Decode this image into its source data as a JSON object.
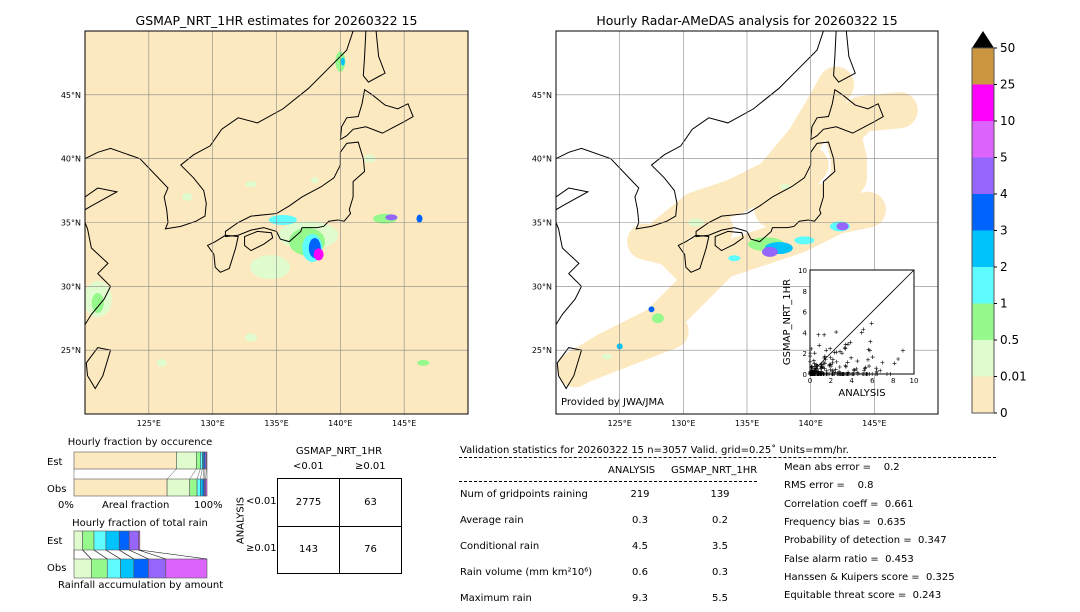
{
  "left_map": {
    "title": "GSMAP_NRT_1HR estimates for 20260322 15"
  },
  "right_map": {
    "title": "Hourly Radar-AMeDAS analysis for 20260322 15",
    "credit": "Provided by JWA/JMA"
  },
  "chart_data": [
    {
      "type": "map",
      "name": "left",
      "lon_ticks": [
        "125°E",
        "130°E",
        "135°E",
        "140°E",
        "145°E"
      ],
      "lat_ticks": [
        "45°N",
        "40°N",
        "35°N",
        "30°N",
        "25°N"
      ],
      "lon_range": [
        120,
        150
      ],
      "lat_range": [
        20,
        50
      ],
      "background": "#fde9c0"
    },
    {
      "type": "map",
      "name": "right",
      "lon_ticks": [
        "125°E",
        "130°E",
        "135°E",
        "140°E",
        "145°E"
      ],
      "lat_ticks": [
        "45°N",
        "40°N",
        "35°N",
        "30°N",
        "25°N"
      ],
      "lon_range": [
        120,
        150
      ],
      "lat_range": [
        20,
        50
      ]
    },
    {
      "type": "scatter",
      "xlabel": "ANALYSIS",
      "ylabel": "GSMAP_NRT_1HR",
      "xlim": [
        0,
        10
      ],
      "ylim": [
        0,
        10
      ],
      "ticks": [
        "0",
        "2",
        "4",
        "6",
        "8",
        "10"
      ],
      "marker": "+"
    },
    {
      "type": "colorbar",
      "labels": [
        "0",
        "0.01",
        "0.5",
        "1",
        "2",
        "3",
        "4",
        "5",
        "10",
        "25",
        "50"
      ],
      "colors": [
        "#fde9c0",
        "#e0fccf",
        "#96f98c",
        "#5efcfc",
        "#00c3fc",
        "#0064fc",
        "#9665fc",
        "#dc64fc",
        "#fc00fc",
        "#cc9640"
      ],
      "extend": "max"
    }
  ],
  "occurrence": {
    "title": "Hourly fraction by occurence",
    "rows": [
      "Est",
      "Obs"
    ],
    "xlabel": "Areal fraction",
    "x0": "0%",
    "x1": "100%",
    "est": [
      0.77,
      0.15,
      0.03,
      0.015,
      0.01,
      0.01,
      0.01,
      0.005
    ],
    "obs": [
      0.7,
      0.17,
      0.055,
      0.025,
      0.02,
      0.01,
      0.01,
      0.01
    ]
  },
  "total_rain": {
    "title": "Hourly fraction of total rain",
    "rows": [
      "Est",
      "Obs"
    ],
    "xlabel": "Rainfall accumulation by amount",
    "est": [
      0.065,
      0.085,
      0.09,
      0.1,
      0.075,
      0.07,
      0.01
    ],
    "obs": [
      0.13,
      0.12,
      0.1,
      0.1,
      0.11,
      0.13,
      0.31
    ]
  },
  "contingency": {
    "title": "GSMAP_NRT_1HR",
    "col_labels": [
      "<0.01",
      "≥0.01"
    ],
    "row_title": "ANALYSIS",
    "row_labels": [
      "<0.01",
      "≥0.01"
    ],
    "cells": [
      [
        "2775",
        "63"
      ],
      [
        "143",
        "76"
      ]
    ]
  },
  "stats": {
    "header": "Validation statistics for 20260322 15  n=3057 Valid. grid=0.25˚ Units=mm/hr.",
    "cols": [
      "ANALYSIS",
      "GSMAP_NRT_1HR"
    ],
    "rows": [
      {
        "label": "Num of gridpoints raining",
        "a": "219",
        "g": "139"
      },
      {
        "label": "Average rain",
        "a": "0.3",
        "g": "0.2"
      },
      {
        "label": "Conditional rain",
        "a": "4.5",
        "g": "3.5"
      },
      {
        "label": "Rain volume (mm km²10⁶)",
        "a": "0.6",
        "g": "0.3"
      },
      {
        "label": "Maximum rain",
        "a": "9.3",
        "g": "5.5"
      }
    ],
    "scores": [
      "Mean abs error =    0.2",
      "RMS error =    0.8",
      "Correlation coeff =  0.661",
      "Frequency bias =  0.635",
      "Probability of detection =  0.347",
      "False alarm ratio =  0.453",
      "Hanssen & Kuipers score =  0.325",
      "Equitable threat score =  0.243"
    ]
  }
}
